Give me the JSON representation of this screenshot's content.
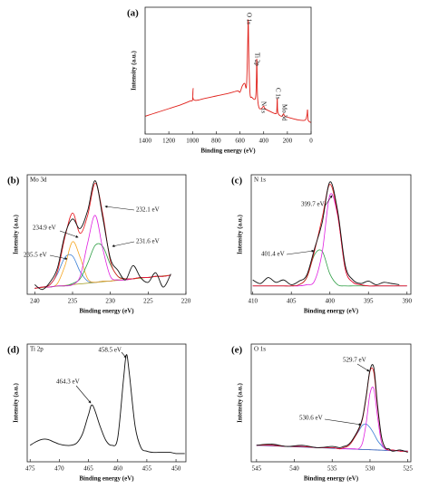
{
  "chart_data": [
    {
      "type": "line",
      "label": "(a)",
      "xlabel": "Binding energy (eV)",
      "ylabel": "Intensity (a.u.)",
      "xlim": [
        1400,
        0
      ],
      "ylim": [
        0,
        100
      ],
      "xticks": [
        1400,
        1200,
        1000,
        800,
        600,
        400,
        200,
        0
      ],
      "annotations": [
        "O 1s",
        "Ti 2p",
        "N 1s",
        "C 1s",
        "Mo 3d"
      ],
      "x": [
        1400,
        1300,
        1200,
        1100,
        1020,
        1000,
        995,
        990,
        900,
        800,
        700,
        620,
        600,
        580,
        560,
        545,
        535,
        530,
        525,
        515,
        500,
        470,
        462,
        458,
        452,
        440,
        420,
        400,
        390,
        350,
        300,
        290,
        285,
        280,
        250,
        232,
        220,
        150,
        100,
        50,
        35,
        30,
        25,
        0
      ],
      "series": [
        {
          "color": "#e0201a",
          "values": [
            14,
            17,
            20,
            23,
            26,
            27,
            36,
            27,
            28,
            30,
            32,
            34,
            33,
            38,
            40,
            38,
            70,
            90,
            60,
            32,
            29,
            28,
            40,
            59,
            30,
            21,
            20,
            22,
            20,
            18,
            16,
            18,
            28,
            17,
            14,
            16,
            14,
            12,
            11,
            11,
            15,
            19,
            11,
            9
          ]
        }
      ]
    },
    {
      "type": "line",
      "label": "(b)",
      "title": "Mo 3d",
      "xlabel": "Binding energy (eV)",
      "ylabel": "Intensity (a.u.)",
      "xlim": [
        241,
        220
      ],
      "ylim": [
        0,
        100
      ],
      "xticks": [
        240,
        235,
        230,
        225,
        220
      ],
      "annotations": [
        "232.1 eV",
        "234.9 eV",
        "231.6 eV",
        "235.5 eV"
      ],
      "x": [
        240,
        239,
        238,
        237,
        236,
        235,
        234,
        233,
        232,
        231,
        230,
        229,
        228,
        227,
        226,
        225,
        224,
        223,
        222
      ],
      "series": [
        {
          "color": "#a09a1c",
          "values": [
            5,
            5.6,
            6.2,
            6.8,
            7.4,
            8.1,
            8.7,
            9.3,
            9.9,
            10.5,
            11.1,
            11.7,
            12.3,
            12.9,
            13.5,
            14.2,
            14.8,
            15.4,
            16
          ]
        },
        {
          "color": "#3a7fd5",
          "values": [
            5,
            6,
            8,
            17,
            31,
            32,
            19,
            11,
            10,
            11,
            11,
            12,
            12,
            13,
            14,
            14,
            15,
            15,
            16
          ]
        },
        {
          "color": "#f5a623",
          "values": [
            5,
            6,
            6,
            9,
            24,
            44,
            31,
            13,
            10,
            11,
            11,
            12,
            12,
            13,
            14,
            14,
            15,
            15,
            16
          ]
        },
        {
          "color": "#2e9e45",
          "values": [
            5,
            6,
            6,
            7,
            7,
            9,
            13,
            26,
            41,
            40,
            25,
            15,
            13,
            13,
            14,
            14,
            15,
            15,
            16
          ]
        },
        {
          "color": "#e020e0",
          "values": [
            5,
            6,
            6,
            7,
            7,
            8,
            15,
            43,
            66,
            38,
            15,
            12,
            12,
            13,
            14,
            14,
            15,
            15,
            16
          ]
        },
        {
          "color": "#e8141b",
          "values": [
            5,
            6,
            8,
            19,
            48,
            68,
            51,
            66,
            93,
            67,
            28,
            15,
            13,
            13,
            14,
            14,
            15,
            15,
            16
          ]
        },
        {
          "color": "#111111",
          "values": [
            8,
            4,
            10,
            22,
            50,
            63,
            55,
            70,
            95,
            64,
            30,
            20,
            12,
            24,
            14,
            10,
            18,
            6,
            17
          ]
        }
      ]
    },
    {
      "type": "line",
      "label": "(c)",
      "title": "N 1s",
      "xlabel": "Binding energy (eV)",
      "ylabel": "Intensity (a.u.)",
      "xlim": [
        410.2,
        389.5
      ],
      "ylim": [
        0,
        100
      ],
      "xticks": [
        410,
        405,
        400,
        395,
        390
      ],
      "annotations": [
        "399.7 eV",
        "401.4 eV"
      ],
      "x": [
        410,
        409,
        408,
        407,
        406,
        405,
        404,
        403,
        402,
        401,
        400,
        399,
        398,
        397,
        396,
        395,
        394,
        393,
        392,
        391,
        390
      ],
      "series": [
        {
          "color": "#2e9e45",
          "values": [
            7,
            7,
            7,
            7,
            7,
            7,
            8,
            14,
            33,
            36,
            17,
            8,
            7,
            7,
            7,
            7,
            7,
            7,
            7,
            7,
            7
          ]
        },
        {
          "color": "#e020e0",
          "values": [
            7,
            7,
            7,
            7,
            7,
            7,
            7,
            8,
            11,
            35,
            83,
            66,
            21,
            10,
            8,
            7,
            7,
            7,
            7,
            7,
            7
          ]
        },
        {
          "color": "#e8141b",
          "values": [
            7,
            7,
            7,
            7,
            7,
            7,
            8,
            14,
            36,
            64,
            92,
            67,
            21,
            10,
            8,
            7,
            7,
            7,
            7,
            7,
            7
          ]
        },
        {
          "color": "#111111",
          "values": [
            12,
            9,
            14,
            10,
            12,
            8,
            11,
            16,
            38,
            60,
            94,
            70,
            24,
            12,
            9,
            11,
            8,
            10,
            9,
            8,
            null
          ]
        }
      ]
    },
    {
      "type": "line",
      "label": "(d)",
      "title": "Ti 2p",
      "xlabel": "Binding energy (eV)",
      "ylabel": "Intensity (a.u.)",
      "xlim": [
        475.5,
        448.3
      ],
      "ylim": [
        0,
        100
      ],
      "xticks": [
        475,
        470,
        465,
        460,
        455,
        450
      ],
      "annotations": [
        "458.5 eV",
        "464.3 eV"
      ],
      "x": [
        475,
        474,
        473,
        472,
        471,
        470,
        469,
        468,
        467,
        466,
        465,
        464.3,
        463,
        462,
        461,
        460,
        459,
        458.5,
        458,
        457,
        456,
        455,
        454,
        453,
        452,
        451,
        450,
        449,
        448.5
      ],
      "series": [
        {
          "color": "#111111",
          "values": [
            14,
            17,
            19,
            19,
            17,
            15,
            14,
            14,
            16,
            24,
            40,
            48,
            30,
            18,
            14,
            20,
            70,
            91,
            75,
            30,
            12,
            9,
            8,
            8,
            8,
            8,
            7,
            7,
            7
          ]
        }
      ]
    },
    {
      "type": "line",
      "label": "(e)",
      "title": "O 1s",
      "xlabel": "Binding energy (eV)",
      "ylabel": "Intensity (a.u.)",
      "xlim": [
        545.7,
        524.6
      ],
      "ylim": [
        0,
        100
      ],
      "xticks": [
        545,
        540,
        535,
        530,
        525
      ],
      "annotations": [
        "529.7 eV",
        "530.6 eV"
      ],
      "x": [
        545,
        543,
        541,
        539,
        537,
        535,
        534,
        533.5,
        533,
        532.5,
        532,
        531.5,
        531,
        530.5,
        530,
        529.5,
        529,
        528.5,
        528,
        527.5,
        527,
        526,
        525
      ],
      "series": [
        {
          "color": "#1f4fb0",
          "values": [
            14,
            13.5,
            13,
            12.5,
            12,
            11.5,
            11.25,
            11.1,
            11,
            10.9,
            10.75,
            10.6,
            10.5,
            10.4,
            10.25,
            10.1,
            10,
            9.9,
            9.75,
            9.6,
            9.5,
            9.25,
            9
          ]
        },
        {
          "color": "#3a7fd5",
          "values": [
            14,
            14,
            13,
            13,
            12,
            12,
            11,
            12,
            13,
            16,
            21,
            26,
            31,
            32,
            29,
            24,
            18,
            14,
            11,
            10,
            10,
            9,
            9
          ]
        },
        {
          "color": "#e020e0",
          "values": [
            14,
            14,
            13,
            13,
            12,
            12,
            11,
            11,
            11,
            11,
            11,
            11,
            16,
            33,
            58,
            62,
            38,
            17,
            11,
            10,
            10,
            9,
            9
          ]
        },
        {
          "color": "#e8141b",
          "values": [
            14,
            14,
            13,
            13,
            12,
            12,
            11,
            12,
            13,
            16,
            21,
            27,
            36,
            55,
            77,
            76,
            46,
            21,
            12,
            10,
            10,
            9,
            9
          ]
        },
        {
          "color": "#111111",
          "values": [
            14,
            15,
            13,
            14,
            12,
            13,
            12,
            13,
            14,
            17,
            22,
            28,
            37,
            56,
            78,
            80,
            48,
            22,
            12,
            11,
            9,
            10,
            8
          ]
        }
      ]
    }
  ]
}
